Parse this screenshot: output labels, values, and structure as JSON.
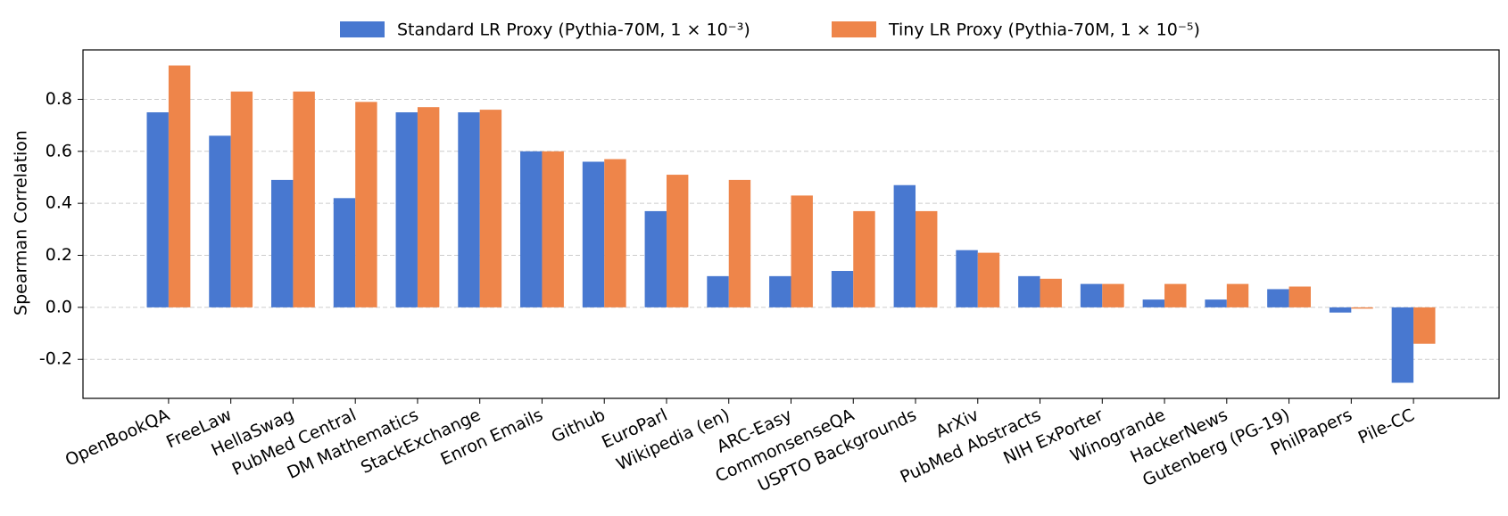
{
  "chart_data": {
    "type": "bar",
    "categories": [
      "OpenBookQA",
      "FreeLaw",
      "HellaSwag",
      "PubMed Central",
      "DM Mathematics",
      "StackExchange",
      "Enron Emails",
      "Github",
      "EuroParl",
      "Wikipedia (en)",
      "ARC-Easy",
      "CommonsenseQA",
      "USPTO Backgrounds",
      "ArXiv",
      "PubMed Abstracts",
      "NIH ExPorter",
      "Winogrande",
      "HackerNews",
      "Gutenberg (PG-19)",
      "PhilPapers",
      "Pile-CC"
    ],
    "series": [
      {
        "name": "Standard LR Proxy (Pythia-70M, 1 × 10⁻³)",
        "color": "#4878d0",
        "values": [
          0.75,
          0.66,
          0.49,
          0.42,
          0.75,
          0.75,
          0.6,
          0.56,
          0.37,
          0.12,
          0.12,
          0.14,
          0.47,
          0.22,
          0.12,
          0.09,
          0.03,
          0.03,
          0.07,
          -0.02,
          -0.29
        ]
      },
      {
        "name": "Tiny LR Proxy (Pythia-70M, 1 × 10⁻⁵)",
        "color": "#ee854a",
        "values": [
          0.93,
          0.83,
          0.83,
          0.79,
          0.77,
          0.76,
          0.6,
          0.57,
          0.51,
          0.49,
          0.43,
          0.37,
          0.37,
          0.21,
          0.11,
          0.09,
          0.09,
          0.09,
          0.08,
          -0.005,
          -0.14
        ]
      }
    ],
    "ylabel": "Spearman Correlation",
    "ylim": [
      -0.35,
      0.99
    ],
    "yticks": [
      -0.2,
      {
        "value": 0,
        "label": "0.0"
      },
      0.2,
      0.4,
      0.6,
      0.8
    ],
    "grid": true,
    "legend": "top"
  }
}
